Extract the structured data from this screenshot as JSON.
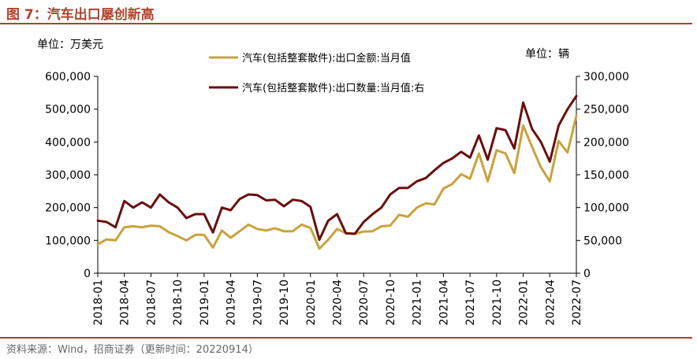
{
  "figure": {
    "title": "图 7：汽车出口屡创新高",
    "source": "资料来源：Wind，招商证券（更新时间：20220914）",
    "accent_color": "#B0432C"
  },
  "chart_data": {
    "type": "line",
    "title": "汽车出口屡创新高",
    "left_unit_label": "单位：万美元",
    "right_unit_label": "单位：辆",
    "categories": [
      "2018-01",
      "2018-02",
      "2018-03",
      "2018-04",
      "2018-05",
      "2018-06",
      "2018-07",
      "2018-08",
      "2018-09",
      "2018-10",
      "2018-11",
      "2018-12",
      "2019-01",
      "2019-02",
      "2019-03",
      "2019-04",
      "2019-05",
      "2019-06",
      "2019-07",
      "2019-08",
      "2019-09",
      "2019-10",
      "2019-11",
      "2019-12",
      "2020-01",
      "2020-02",
      "2020-03",
      "2020-04",
      "2020-05",
      "2020-06",
      "2020-07",
      "2020-08",
      "2020-09",
      "2020-10",
      "2020-11",
      "2020-12",
      "2021-01",
      "2021-02",
      "2021-03",
      "2021-04",
      "2021-05",
      "2021-06",
      "2021-07",
      "2021-08",
      "2021-09",
      "2021-10",
      "2021-11",
      "2021-12",
      "2022-01",
      "2022-02",
      "2022-03",
      "2022-04",
      "2022-05",
      "2022-06",
      "2022-07"
    ],
    "x_tick_labels": [
      "2018-01",
      "2018-04",
      "2018-07",
      "2018-10",
      "2019-01",
      "2019-04",
      "2019-07",
      "2019-10",
      "2020-01",
      "2020-04",
      "2020-07",
      "2020-10",
      "2021-01",
      "2021-04",
      "2021-07",
      "2021-10",
      "2022-01",
      "2022-04",
      "2022-07"
    ],
    "left_axis": {
      "ylim": [
        0,
        600000
      ],
      "ticks": [
        "0",
        "100,000",
        "200,000",
        "300,000",
        "400,000",
        "500,000",
        "600,000"
      ]
    },
    "right_axis": {
      "ylim": [
        0,
        300000
      ],
      "ticks": [
        "0",
        "50,000",
        "100,000",
        "150,000",
        "200,000",
        "250,000",
        "300,000"
      ]
    },
    "series": [
      {
        "name": "汽车(包括整套散件):出口金额:当月值",
        "axis": "left",
        "color": "#C9A23C",
        "values": [
          88000,
          103000,
          100000,
          140000,
          143000,
          140000,
          145000,
          143000,
          125000,
          113000,
          100000,
          117000,
          117000,
          78000,
          130000,
          108000,
          128000,
          148000,
          135000,
          130000,
          137000,
          128000,
          128000,
          148000,
          138000,
          75000,
          102000,
          135000,
          122000,
          120000,
          127000,
          128000,
          143000,
          145000,
          178000,
          172000,
          200000,
          213000,
          210000,
          258000,
          272000,
          302000,
          288000,
          365000,
          280000,
          375000,
          365000,
          305000,
          450000,
          385000,
          323000,
          280000,
          403000,
          368000,
          480000
        ]
      },
      {
        "name": "汽车(包括整套散件):出口数量:当月值:右",
        "axis": "right",
        "color": "#6B0E0E",
        "values": [
          80000,
          78000,
          70000,
          110000,
          100000,
          108000,
          100000,
          120000,
          108000,
          100000,
          84000,
          90000,
          90000,
          62000,
          100000,
          96000,
          113000,
          120000,
          119000,
          111000,
          112000,
          102000,
          112000,
          110000,
          101000,
          51000,
          80000,
          90000,
          61000,
          60000,
          78000,
          90000,
          100000,
          120000,
          130000,
          130000,
          140000,
          145000,
          157000,
          168000,
          175000,
          185000,
          176000,
          210000,
          173000,
          221000,
          218000,
          190000,
          260000,
          220000,
          200000,
          170000,
          225000,
          250000,
          270000
        ]
      }
    ]
  }
}
